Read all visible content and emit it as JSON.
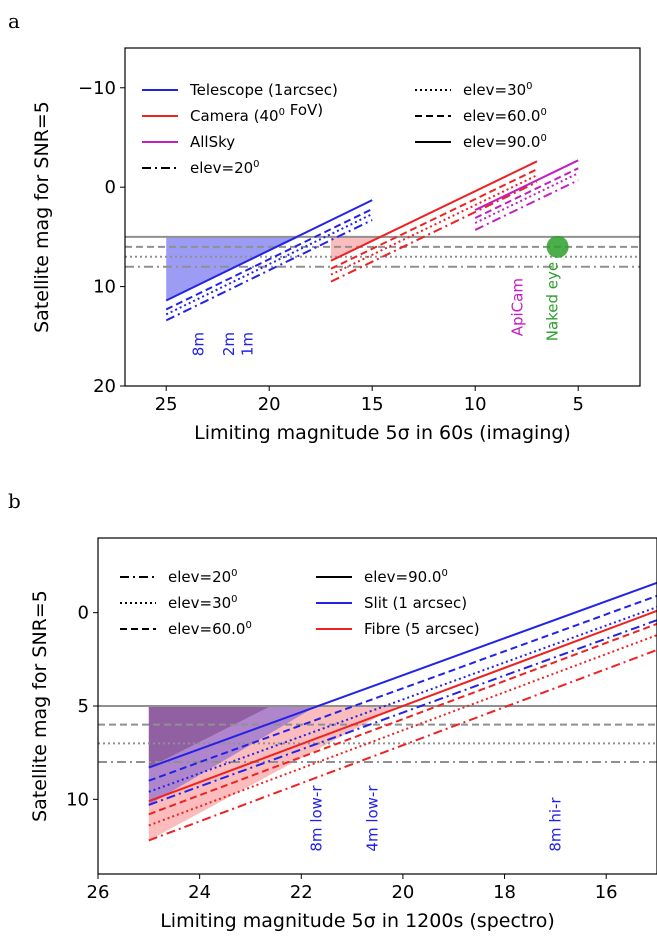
{
  "chart_data": [
    {
      "panel": "a",
      "type": "line",
      "xlabel": "Limiting magnitude 5σ in 60s (imaging)",
      "ylabel": "Satellite mag for SNR=5",
      "xlim": [
        27,
        2
      ],
      "ylim": [
        20,
        -14
      ],
      "xticks": [
        25,
        20,
        15,
        10,
        5
      ],
      "yticks": [
        -10,
        0,
        10,
        20
      ],
      "colors": {
        "telescope": "#2323e8",
        "camera": "#ee2222",
        "allsky": "#c21fc2",
        "naked": "#2ca02c",
        "hline": "#909090"
      },
      "legend": {
        "placement": "top",
        "col1": [
          {
            "label": "Telescope (1arcsec)",
            "color": "#2323e8",
            "dash": "solid"
          },
          {
            "label": "Camera (40° FoV)",
            "color": "#ee2222",
            "dash": "solid"
          },
          {
            "label": "AllSky",
            "color": "#c21fc2",
            "dash": "solid"
          },
          {
            "label": "elev=20°",
            "color": "#000000",
            "dash": "dashdot"
          }
        ],
        "col2": [
          {
            "label": "elev=30°",
            "color": "#000000",
            "dash": "dotted"
          },
          {
            "label": "elev=60.0°",
            "color": "#000000",
            "dash": "dashed"
          },
          {
            "label": "elev=90.0°",
            "color": "#000000",
            "dash": "solid"
          }
        ]
      },
      "hlines": [
        {
          "y": 5,
          "dash": "solid"
        },
        {
          "y": 6,
          "dash": "dashed"
        },
        {
          "y": 7,
          "dash": "dotted"
        },
        {
          "y": 8,
          "dash": "dashdot"
        }
      ],
      "groups": [
        {
          "name": "Telescope (1arcsec)",
          "color": "#2323e8",
          "x0": 25,
          "x1": 15,
          "lines": [
            {
              "dash": "solid",
              "y0": 11.4,
              "y1": 1.3
            },
            {
              "dash": "dashed",
              "y0": 12.3,
              "y1": 2.2
            },
            {
              "dash": "dotted",
              "y0": 12.8,
              "y1": 2.7
            },
            {
              "dash": "dashdot",
              "y0": 13.4,
              "y1": 3.3
            }
          ]
        },
        {
          "name": "Camera (40° FoV)",
          "color": "#ee2222",
          "x0": 17,
          "x1": 7,
          "lines": [
            {
              "dash": "solid",
              "y0": 7.4,
              "y1": -2.6
            },
            {
              "dash": "dashed",
              "y0": 8.2,
              "y1": -1.8
            },
            {
              "dash": "dotted",
              "y0": 8.8,
              "y1": -1.2
            },
            {
              "dash": "dashdot",
              "y0": 9.5,
              "y1": -0.5
            }
          ]
        },
        {
          "name": "AllSky",
          "color": "#c21fc2",
          "x0": 10,
          "x1": 5,
          "lines": [
            {
              "dash": "solid",
              "y0": 2.3,
              "y1": -2.7
            },
            {
              "dash": "dashed",
              "y0": 3.1,
              "y1": -1.9
            },
            {
              "dash": "dotted",
              "y0": 3.6,
              "y1": -1.4
            },
            {
              "dash": "dashdot",
              "y0": 4.3,
              "y1": -0.7
            }
          ]
        }
      ],
      "fills": [
        {
          "color": "#2323e8",
          "opacity": 0.45,
          "x0": 25,
          "x1": 18.5,
          "ybottom0": 11.4,
          "ybottom1": 5,
          "ytop": 5
        },
        {
          "color": "#ee2222",
          "opacity": 0.3,
          "x0": 17,
          "x1": 14.6,
          "ybottom0": 7.4,
          "ybottom1": 5,
          "ytop": 5
        }
      ],
      "point": {
        "x": 6,
        "y": 6,
        "color": "#2ca02c",
        "label": "Naked eye"
      },
      "annotations": [
        {
          "text": "8m",
          "x": 23.2,
          "y": 17,
          "color": "#2323e8"
        },
        {
          "text": "2m",
          "x": 21.7,
          "y": 17,
          "color": "#2323e8"
        },
        {
          "text": "1m",
          "x": 20.8,
          "y": 17,
          "color": "#2323e8"
        },
        {
          "text": "ApiCam",
          "x": 7.7,
          "y": 15,
          "color": "#c21fc2"
        },
        {
          "text": "Naked eye",
          "x": 6,
          "y": 15.5,
          "color": "#2ca02c"
        }
      ]
    },
    {
      "panel": "b",
      "type": "line",
      "xlabel": "Limiting magnitude 5σ in 1200s (spectro)",
      "ylabel": "Satellite mag for SNR=5",
      "xlim": [
        26,
        15
      ],
      "ylim": [
        14,
        -4
      ],
      "xticks": [
        26,
        24,
        22,
        20,
        18,
        16
      ],
      "yticks": [
        0,
        5,
        10
      ],
      "colors": {
        "slit": "#2323e8",
        "fibre": "#ee2222",
        "hline": "#909090"
      },
      "legend": {
        "placement": "top-left",
        "col1": [
          {
            "label": "elev=20°",
            "color": "#000000",
            "dash": "dashdot"
          },
          {
            "label": "elev=30°",
            "color": "#000000",
            "dash": "dotted"
          },
          {
            "label": "elev=60.0°",
            "color": "#000000",
            "dash": "dashed"
          }
        ],
        "col2": [
          {
            "label": "elev=90.0°",
            "color": "#000000",
            "dash": "solid"
          },
          {
            "label": "Slit (1 arcsec)",
            "color": "#2323e8",
            "dash": "solid"
          },
          {
            "label": "Fibre (5 arcsec)",
            "color": "#ee2222",
            "dash": "solid"
          }
        ]
      },
      "hlines": [
        {
          "y": 5,
          "dash": "solid"
        },
        {
          "y": 6,
          "dash": "dashed"
        },
        {
          "y": 7,
          "dash": "dotted"
        },
        {
          "y": 8,
          "dash": "dashdot"
        }
      ],
      "groups": [
        {
          "name": "Slit (1 arcsec)",
          "color": "#2323e8",
          "x0": 25,
          "x1": 15,
          "lines": [
            {
              "dash": "solid",
              "y0": 8.3,
              "y1": -1.6
            },
            {
              "dash": "dashed",
              "y0": 9.0,
              "y1": -0.9
            },
            {
              "dash": "dotted",
              "y0": 9.6,
              "y1": -0.3
            },
            {
              "dash": "dashdot",
              "y0": 10.3,
              "y1": 0.4
            }
          ]
        },
        {
          "name": "Fibre (5 arcsec)",
          "color": "#ee2222",
          "x0": 25,
          "x1": 15,
          "lines": [
            {
              "dash": "solid",
              "y0": 10.1,
              "y1": -0.1
            },
            {
              "dash": "dashed",
              "y0": 10.8,
              "y1": 0.6
            },
            {
              "dash": "dotted",
              "y0": 11.4,
              "y1": 1.2
            },
            {
              "dash": "dashdot",
              "y0": 12.2,
              "y1": 2.0
            }
          ]
        }
      ],
      "fills": [
        {
          "color": "#ee2222",
          "opacity": 0.3,
          "x0": 25,
          "x1": 20.1,
          "ybottom0": 12.2,
          "ybottom1": 5,
          "ytop": 5
        },
        {
          "color": "#2323e8",
          "opacity": 0.35,
          "x0": 25,
          "x1": 21.7,
          "ybottom0": 10.3,
          "ybottom1": 5,
          "ytop": 5
        },
        {
          "color": "#5a1a5a",
          "opacity": 0.35,
          "x0": 25,
          "x1": 22.6,
          "ybottom0": 8.3,
          "ybottom1": 5,
          "ytop": 5
        }
      ],
      "annotations": [
        {
          "text": "8m low-r",
          "x": 21.6,
          "y": 12.8,
          "color": "#2323e8"
        },
        {
          "text": "4m low-r",
          "x": 20.5,
          "y": 12.8,
          "color": "#2323e8"
        },
        {
          "text": "8m hi-r",
          "x": 16.9,
          "y": 12.8,
          "color": "#2323e8"
        }
      ]
    }
  ]
}
